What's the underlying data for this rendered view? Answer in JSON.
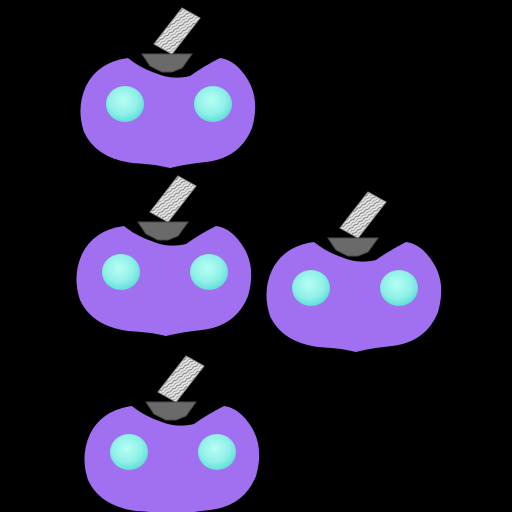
{
  "scene": {
    "background_color": "#000000",
    "sprite_type": "purple-pumpkin-creature",
    "sprite_count": 4
  },
  "colors": {
    "body": "#a070f0",
    "body_shadow": "#8a5adc",
    "eye_outer": "#5fe0d8",
    "eye_inner": "#b6fff4",
    "eye_highlight": "#e8fffb",
    "stem_base": "#6a6a6a",
    "stem_base_dark": "#4c4c4c",
    "wood_light": "#e6e6e6",
    "wood_dark": "#7a7a7a"
  },
  "sprites": [
    {
      "id": "pumpkin-1",
      "eyes": 2,
      "has_stem": true
    },
    {
      "id": "pumpkin-2",
      "eyes": 2,
      "has_stem": true
    },
    {
      "id": "pumpkin-3",
      "eyes": 2,
      "has_stem": true
    },
    {
      "id": "pumpkin-4",
      "eyes": 2,
      "has_stem": true
    }
  ]
}
